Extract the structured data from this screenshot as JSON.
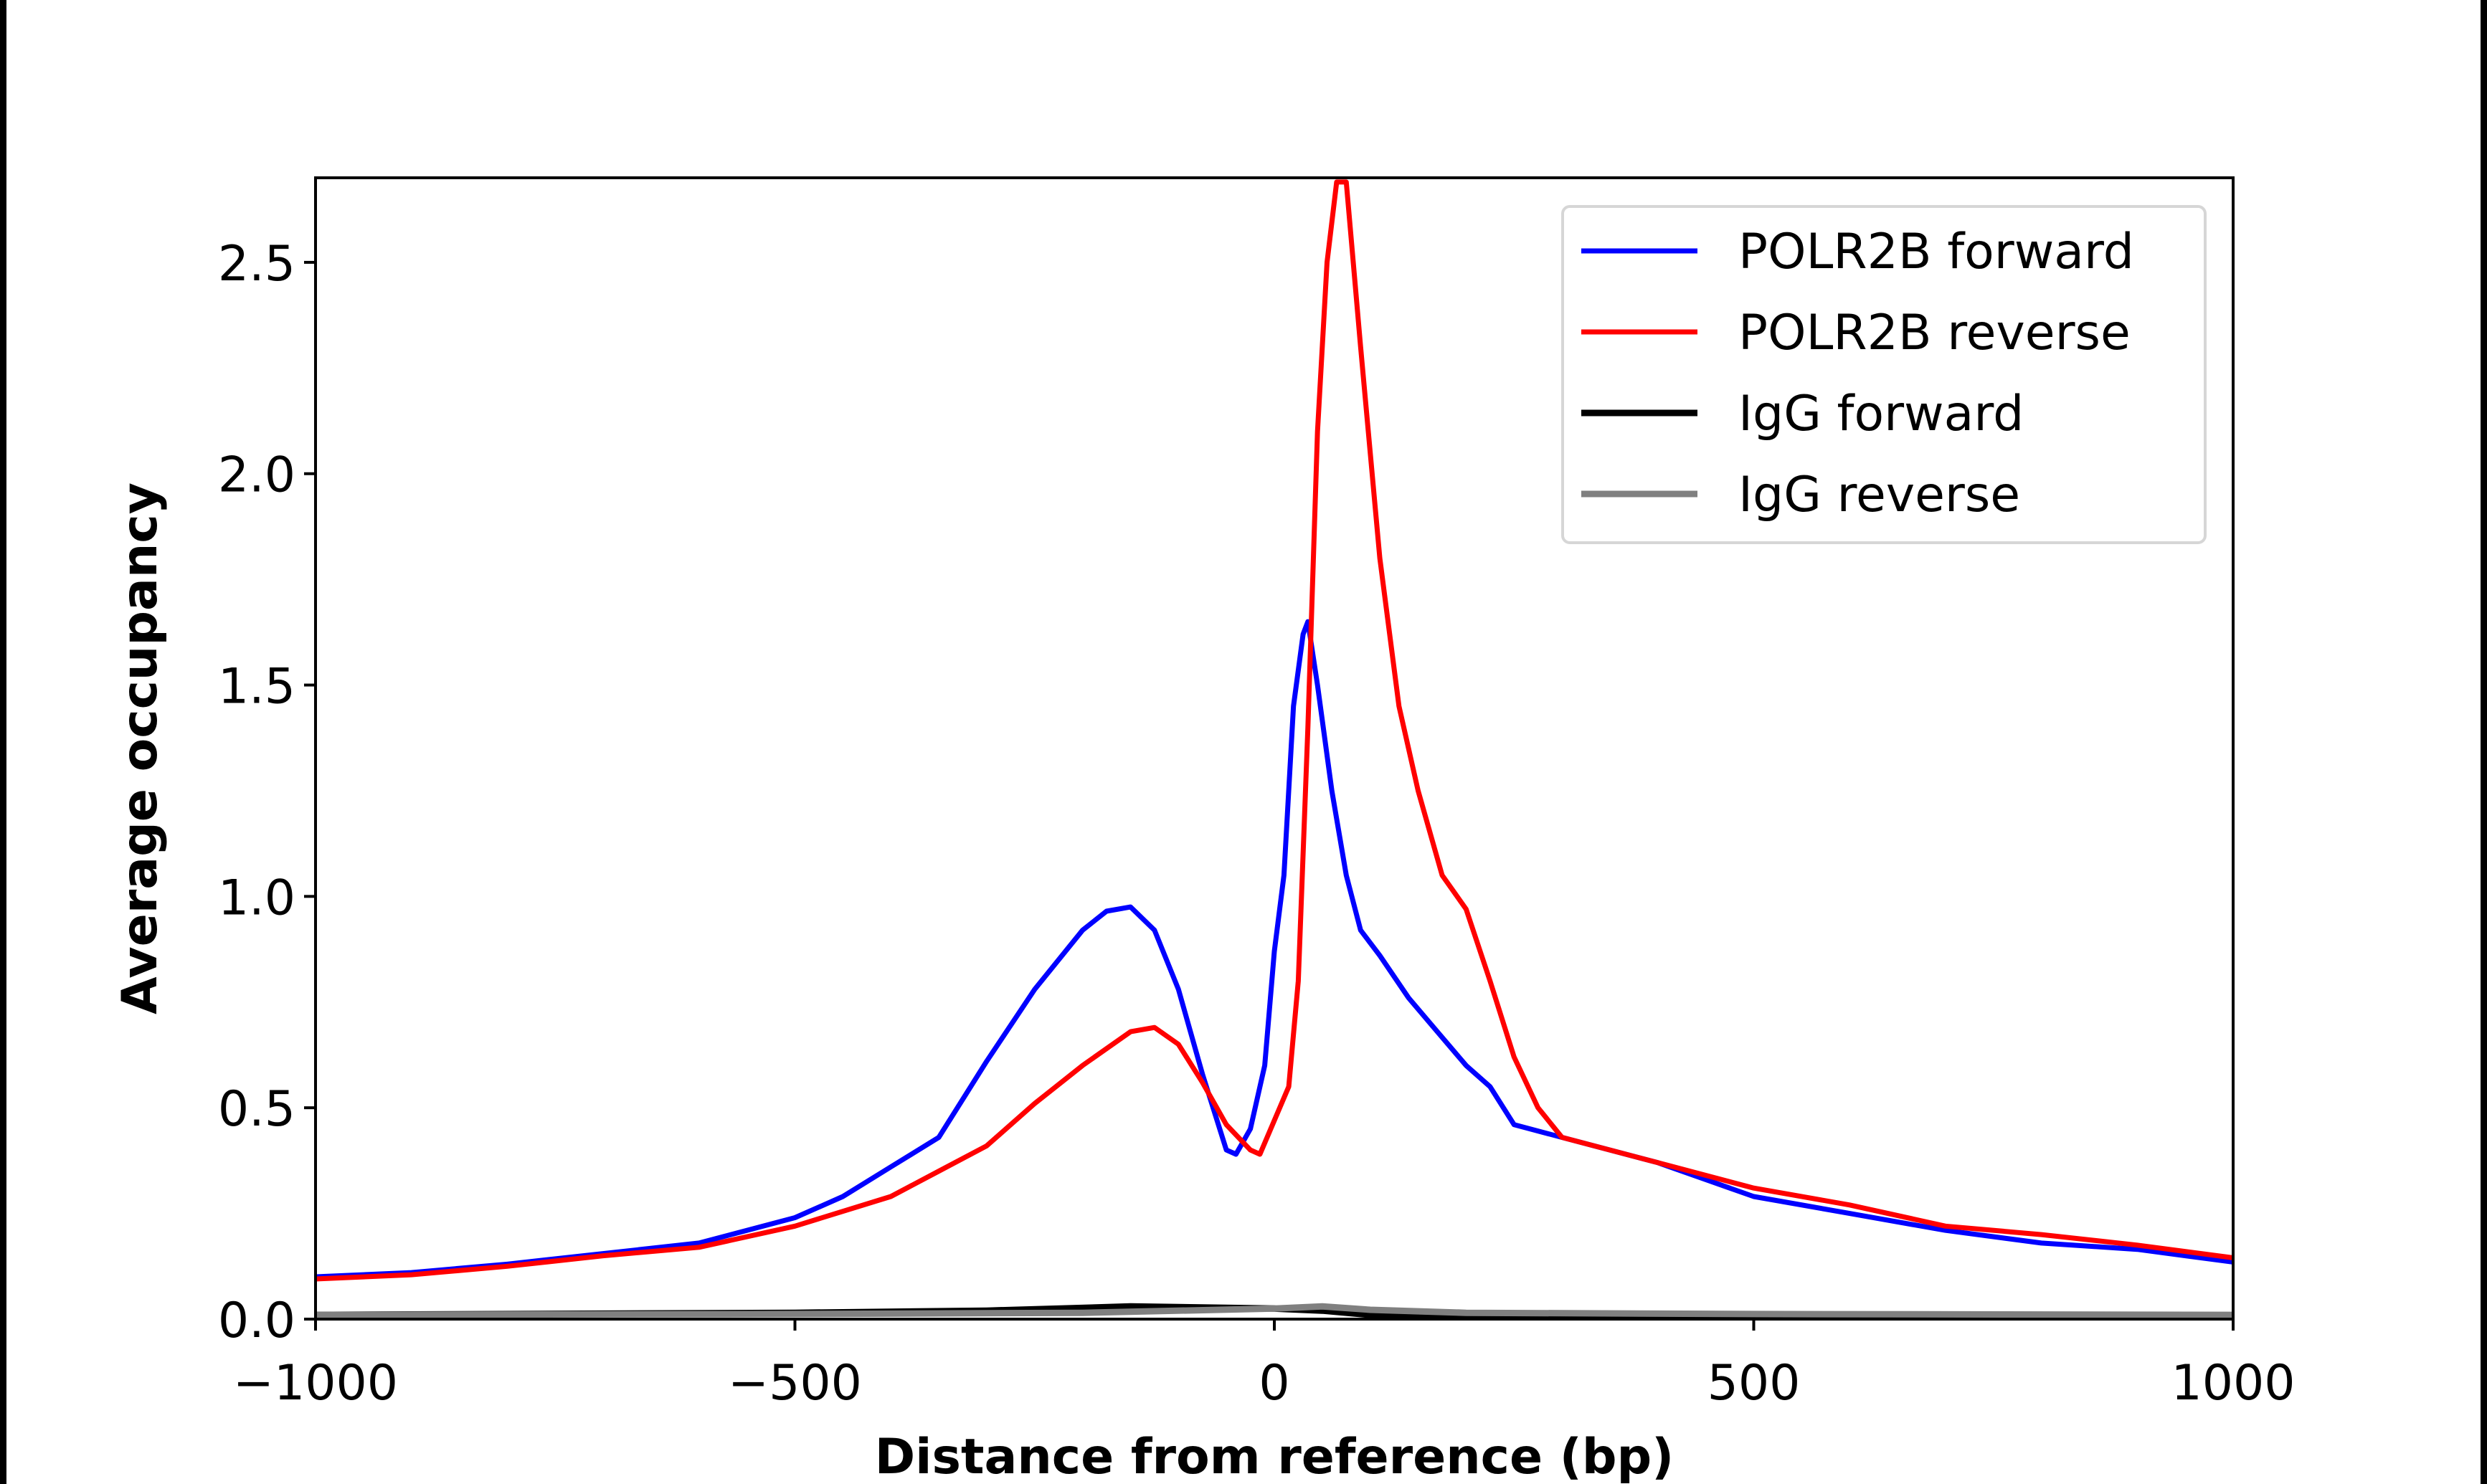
{
  "chart_data": {
    "type": "line",
    "title": "",
    "xlabel": "Distance from reference (bp)",
    "ylabel": "Average occupancy",
    "xlim": [
      -1000,
      1000
    ],
    "ylim": [
      0,
      2.7
    ],
    "xticks": [
      -1000,
      -500,
      0,
      500,
      1000
    ],
    "xtick_labels": [
      "−1000",
      "−500",
      "0",
      "500",
      "1000"
    ],
    "yticks": [
      0.0,
      0.5,
      1.0,
      1.5,
      2.0,
      2.5
    ],
    "ytick_labels": [
      "0.0",
      "0.5",
      "1.0",
      "1.5",
      "2.0",
      "2.5"
    ],
    "grid": false,
    "legend_position": "top-right",
    "series": [
      {
        "name": "POLR2B forward",
        "color": "#0000ff",
        "x": [
          -1000,
          -900,
          -800,
          -700,
          -600,
          -500,
          -450,
          -400,
          -350,
          -300,
          -250,
          -200,
          -175,
          -150,
          -125,
          -100,
          -75,
          -50,
          -40,
          -25,
          -10,
          0,
          10,
          20,
          30,
          35,
          45,
          60,
          75,
          90,
          110,
          140,
          170,
          200,
          225,
          250,
          300,
          400,
          500,
          600,
          700,
          800,
          900,
          1000
        ],
        "y": [
          0.1,
          0.11,
          0.13,
          0.155,
          0.18,
          0.24,
          0.29,
          0.36,
          0.43,
          0.61,
          0.78,
          0.92,
          0.965,
          0.975,
          0.92,
          0.78,
          0.58,
          0.4,
          0.39,
          0.45,
          0.6,
          0.87,
          1.05,
          1.45,
          1.62,
          1.65,
          1.5,
          1.25,
          1.05,
          0.92,
          0.86,
          0.76,
          0.68,
          0.6,
          0.55,
          0.46,
          0.43,
          0.37,
          0.29,
          0.25,
          0.21,
          0.18,
          0.165,
          0.135
        ]
      },
      {
        "name": "POLR2B reverse",
        "color": "#ff0000",
        "x": [
          -1000,
          -900,
          -800,
          -700,
          -600,
          -500,
          -400,
          -350,
          -300,
          -250,
          -200,
          -150,
          -125,
          -100,
          -75,
          -50,
          -25,
          -15,
          0,
          15,
          25,
          35,
          45,
          55,
          65,
          75,
          90,
          110,
          130,
          150,
          175,
          200,
          225,
          250,
          275,
          300,
          350,
          400,
          500,
          600,
          700,
          800,
          900,
          1000
        ],
        "y": [
          0.095,
          0.105,
          0.125,
          0.15,
          0.17,
          0.22,
          0.29,
          0.35,
          0.41,
          0.51,
          0.6,
          0.68,
          0.69,
          0.65,
          0.56,
          0.46,
          0.4,
          0.39,
          0.47,
          0.55,
          0.8,
          1.4,
          2.1,
          2.5,
          2.69,
          2.69,
          2.3,
          1.8,
          1.45,
          1.25,
          1.05,
          0.97,
          0.8,
          0.62,
          0.5,
          0.43,
          0.4,
          0.37,
          0.31,
          0.27,
          0.22,
          0.2,
          0.175,
          0.145
        ]
      },
      {
        "name": "IgG forward",
        "color": "#000000",
        "x": [
          -1000,
          -500,
          -300,
          -150,
          0,
          50,
          100,
          200,
          500,
          1000
        ],
        "y": [
          0.01,
          0.015,
          0.02,
          0.03,
          0.025,
          0.02,
          0.01,
          0.005,
          0.005,
          0.005
        ]
      },
      {
        "name": "IgG reverse",
        "color": "#808080",
        "x": [
          -1000,
          -500,
          -200,
          0,
          50,
          100,
          200,
          500,
          1000
        ],
        "y": [
          0.01,
          0.012,
          0.015,
          0.025,
          0.03,
          0.022,
          0.015,
          0.012,
          0.01
        ]
      }
    ]
  }
}
